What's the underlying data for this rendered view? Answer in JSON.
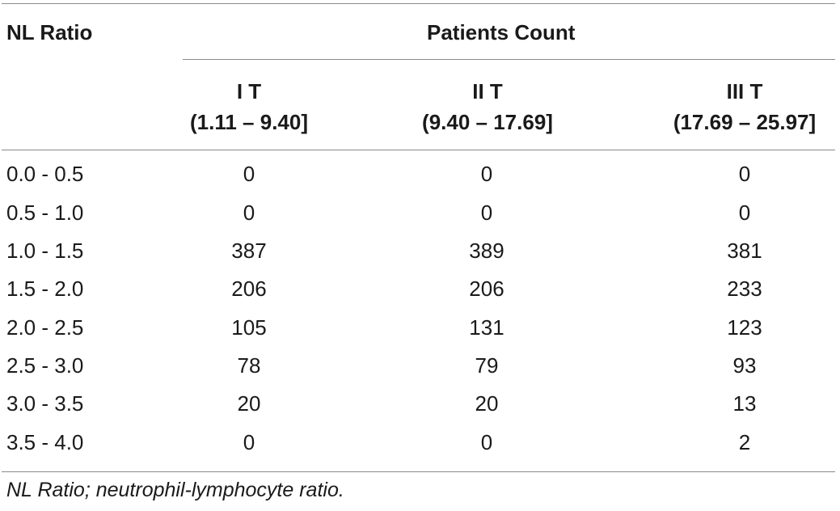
{
  "table": {
    "header_rowlabel": "NL Ratio",
    "header_group": "Patients Count",
    "columns": [
      {
        "line1": "I T",
        "line2": "(1.11 – 9.40]"
      },
      {
        "line1": "II T",
        "line2": "(9.40 – 17.69]"
      },
      {
        "line1": "III T",
        "line2": "(17.69 – 25.97]"
      }
    ],
    "rows": [
      {
        "label": "0.0 - 0.5",
        "values": [
          "0",
          "0",
          "0"
        ]
      },
      {
        "label": "0.5 - 1.0",
        "values": [
          "0",
          "0",
          "0"
        ]
      },
      {
        "label": "1.0 - 1.5",
        "values": [
          "387",
          "389",
          "381"
        ]
      },
      {
        "label": "1.5 - 2.0",
        "values": [
          "206",
          "206",
          "233"
        ]
      },
      {
        "label": "2.0 - 2.5",
        "values": [
          "105",
          "131",
          "123"
        ]
      },
      {
        "label": "2.5 - 3.0",
        "values": [
          "78",
          "79",
          "93"
        ]
      },
      {
        "label": "3.0 - 3.5",
        "values": [
          "20",
          "20",
          "13"
        ]
      },
      {
        "label": "3.5 - 4.0",
        "values": [
          "0",
          "0",
          "2"
        ]
      }
    ],
    "footnote": "NL Ratio; neutrophil-lymphocyte ratio."
  }
}
